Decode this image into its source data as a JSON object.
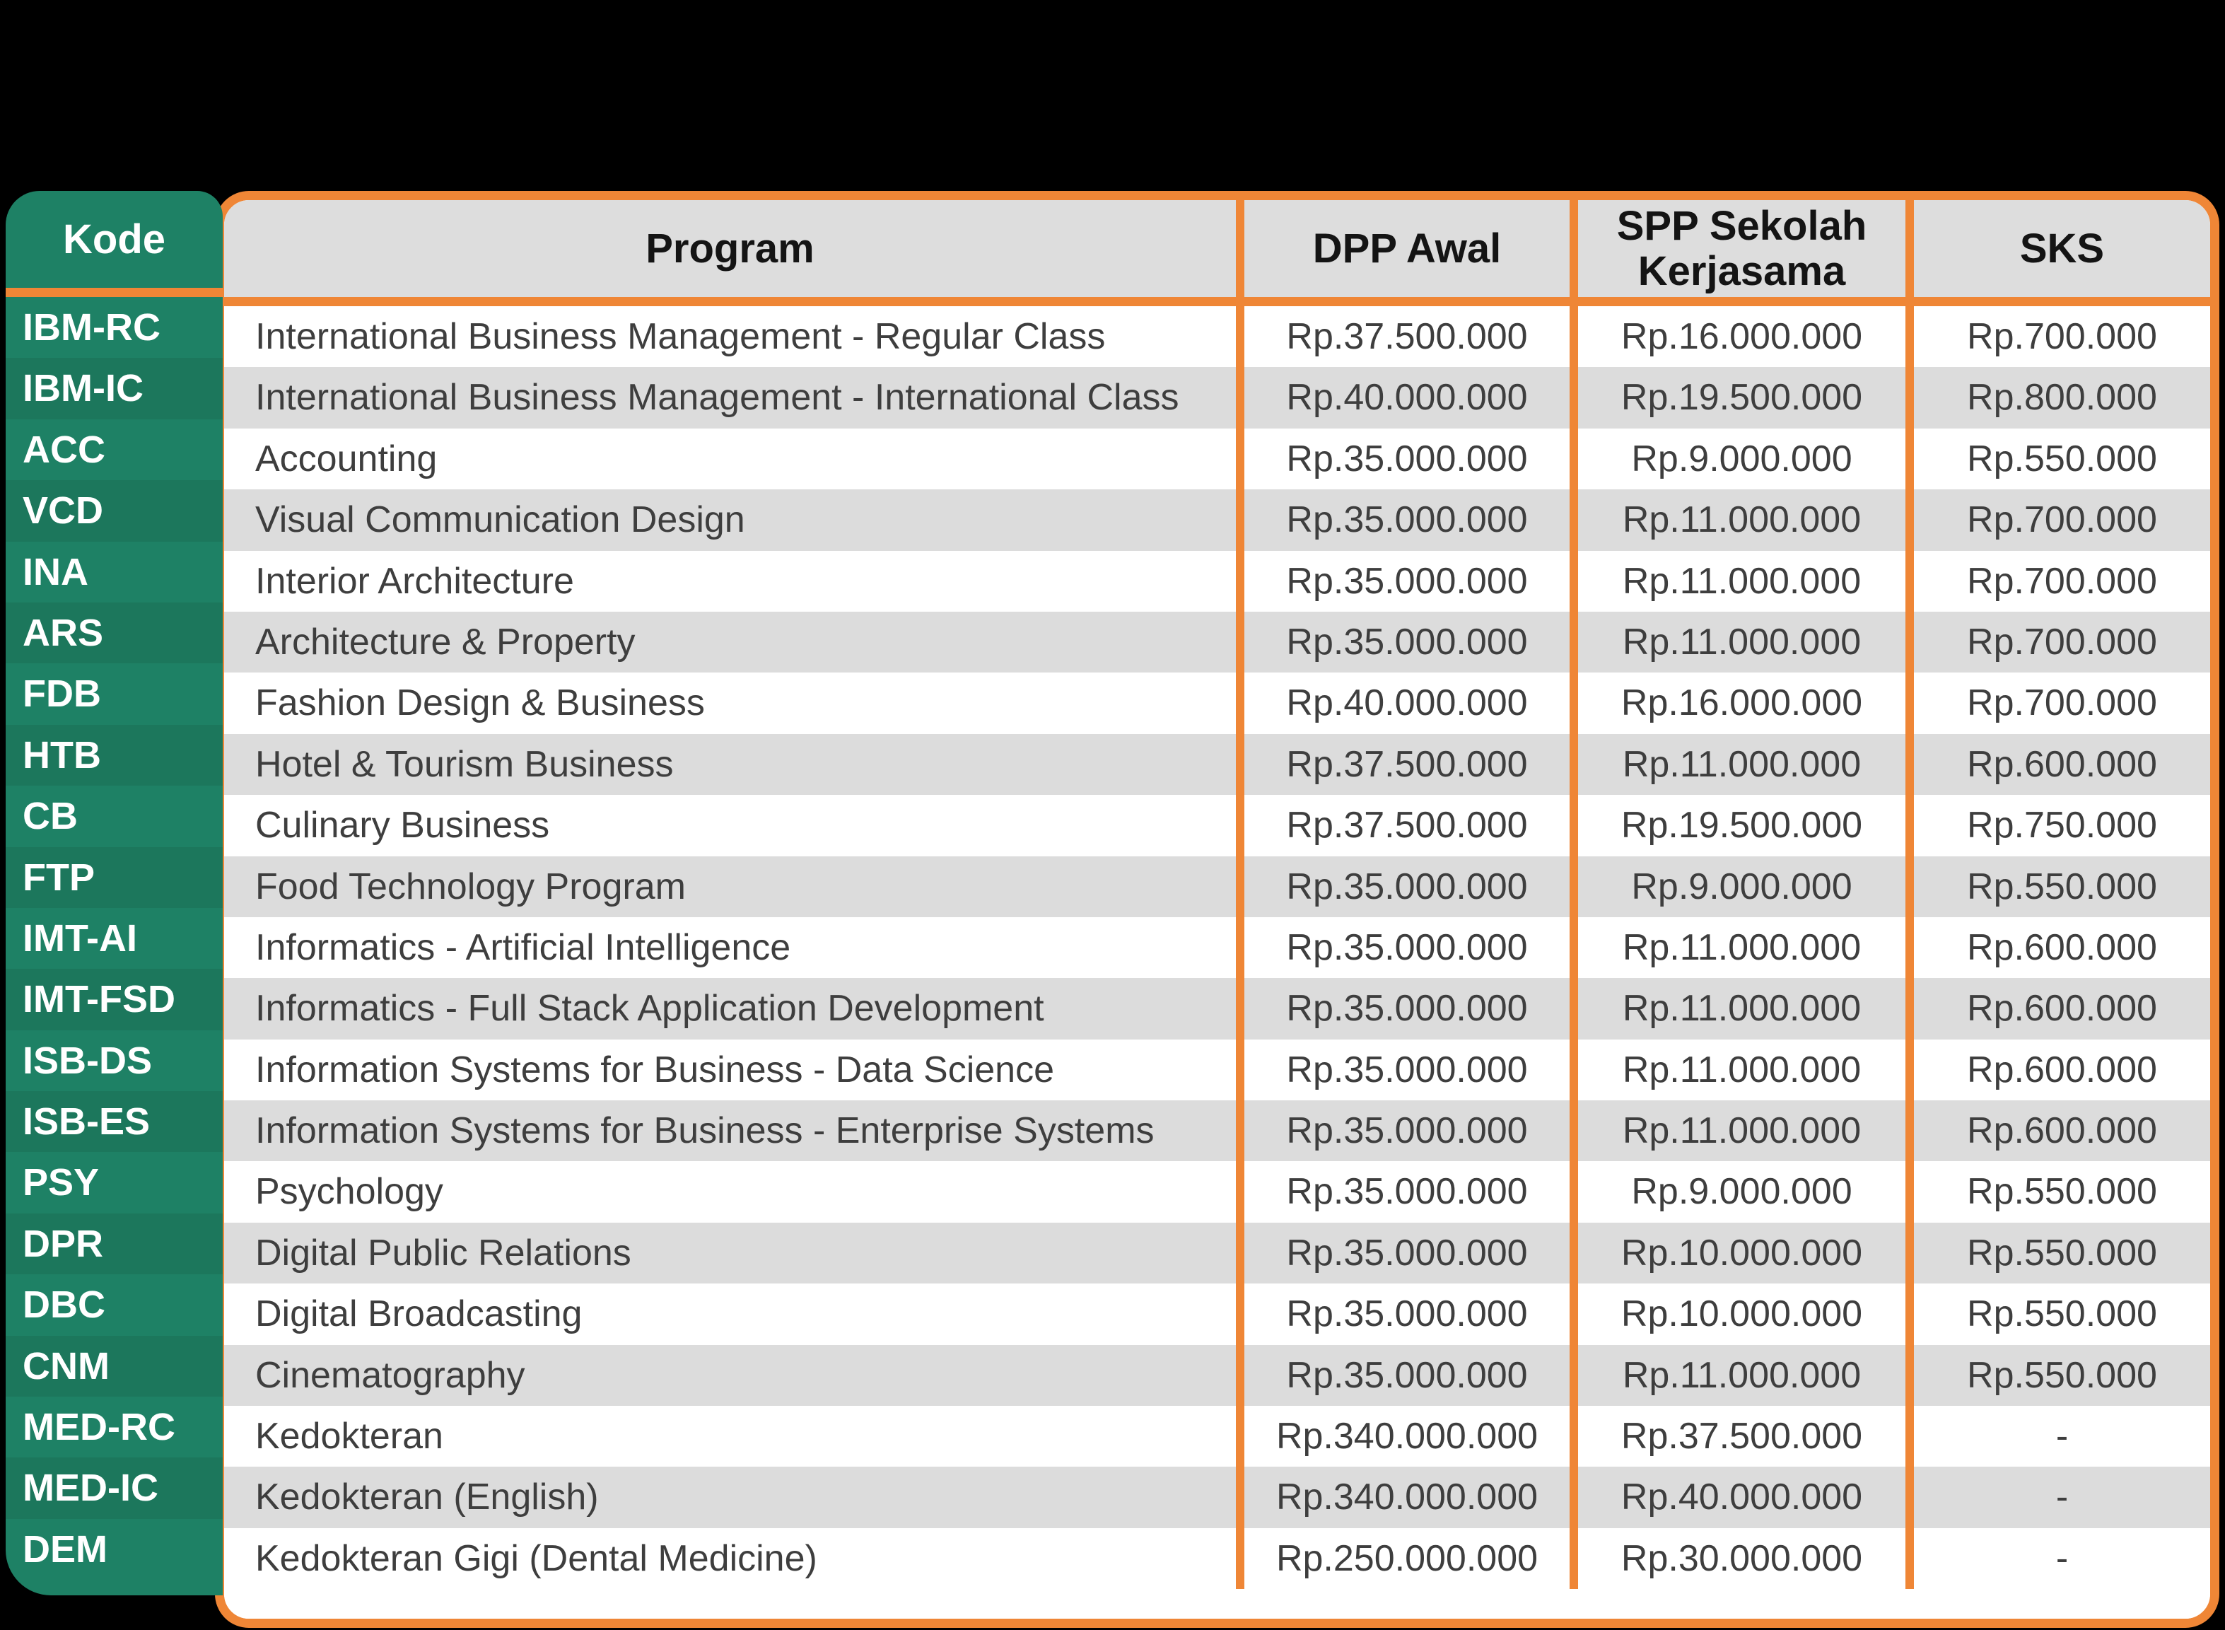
{
  "colors": {
    "background": "#000000",
    "accent_orange": "#EF8636",
    "kode_green": "#1E8165",
    "kode_green_alt": "#1C775C",
    "header_gray": "#DDDDDD",
    "stripe_gray": "#DCDCDC",
    "body_text": "#3E3E3E",
    "header_text": "#141414",
    "kode_text": "#FFFFFF"
  },
  "table": {
    "columns": [
      "Kode",
      "Program",
      "DPP Awal",
      "SPP Sekolah Kerjasama",
      "SKS"
    ],
    "rows": [
      {
        "kode": "IBM-RC",
        "program": "International Business Management - Regular Class",
        "dpp": "Rp.37.500.000",
        "spp": "Rp.16.000.000",
        "sks": "Rp.700.000"
      },
      {
        "kode": "IBM-IC",
        "program": "International Business Management - International Class",
        "dpp": "Rp.40.000.000",
        "spp": "Rp.19.500.000",
        "sks": "Rp.800.000"
      },
      {
        "kode": "ACC",
        "program": "Accounting",
        "dpp": "Rp.35.000.000",
        "spp": "Rp.9.000.000",
        "sks": "Rp.550.000"
      },
      {
        "kode": "VCD",
        "program": "Visual Communication Design",
        "dpp": "Rp.35.000.000",
        "spp": "Rp.11.000.000",
        "sks": "Rp.700.000"
      },
      {
        "kode": "INA",
        "program": "Interior Architecture",
        "dpp": "Rp.35.000.000",
        "spp": "Rp.11.000.000",
        "sks": "Rp.700.000"
      },
      {
        "kode": "ARS",
        "program": "Architecture & Property",
        "dpp": "Rp.35.000.000",
        "spp": "Rp.11.000.000",
        "sks": "Rp.700.000"
      },
      {
        "kode": "FDB",
        "program": "Fashion Design & Business",
        "dpp": "Rp.40.000.000",
        "spp": "Rp.16.000.000",
        "sks": "Rp.700.000"
      },
      {
        "kode": "HTB",
        "program": "Hotel & Tourism Business",
        "dpp": "Rp.37.500.000",
        "spp": "Rp.11.000.000",
        "sks": "Rp.600.000"
      },
      {
        "kode": "CB",
        "program": "Culinary Business",
        "dpp": "Rp.37.500.000",
        "spp": "Rp.19.500.000",
        "sks": "Rp.750.000"
      },
      {
        "kode": "FTP",
        "program": "Food Technology Program",
        "dpp": "Rp.35.000.000",
        "spp": "Rp.9.000.000",
        "sks": "Rp.550.000"
      },
      {
        "kode": "IMT-AI",
        "program": "Informatics - Artificial Intelligence",
        "dpp": "Rp.35.000.000",
        "spp": "Rp.11.000.000",
        "sks": "Rp.600.000"
      },
      {
        "kode": "IMT-FSD",
        "program": "Informatics - Full Stack Application Development",
        "dpp": "Rp.35.000.000",
        "spp": "Rp.11.000.000",
        "sks": "Rp.600.000"
      },
      {
        "kode": "ISB-DS",
        "program": "Information Systems for Business - Data Science",
        "dpp": "Rp.35.000.000",
        "spp": "Rp.11.000.000",
        "sks": "Rp.600.000"
      },
      {
        "kode": "ISB-ES",
        "program": "Information Systems for Business - Enterprise Systems",
        "dpp": "Rp.35.000.000",
        "spp": "Rp.11.000.000",
        "sks": "Rp.600.000"
      },
      {
        "kode": "PSY",
        "program": "Psychology",
        "dpp": "Rp.35.000.000",
        "spp": "Rp.9.000.000",
        "sks": "Rp.550.000"
      },
      {
        "kode": "DPR",
        "program": "Digital Public Relations",
        "dpp": "Rp.35.000.000",
        "spp": "Rp.10.000.000",
        "sks": "Rp.550.000"
      },
      {
        "kode": "DBC",
        "program": "Digital Broadcasting",
        "dpp": "Rp.35.000.000",
        "spp": "Rp.10.000.000",
        "sks": "Rp.550.000"
      },
      {
        "kode": "CNM",
        "program": "Cinematography",
        "dpp": "Rp.35.000.000",
        "spp": "Rp.11.000.000",
        "sks": "Rp.550.000"
      },
      {
        "kode": "MED-RC",
        "program": "Kedokteran",
        "dpp": "Rp.340.000.000",
        "spp": "Rp.37.500.000",
        "sks": "-"
      },
      {
        "kode": "MED-IC",
        "program": "Kedokteran (English)",
        "dpp": "Rp.340.000.000",
        "spp": "Rp.40.000.000",
        "sks": "-"
      },
      {
        "kode": "DEM",
        "program": "Kedokteran Gigi (Dental Medicine)",
        "dpp": "Rp.250.000.000",
        "spp": "Rp.30.000.000",
        "sks": "-"
      }
    ]
  }
}
